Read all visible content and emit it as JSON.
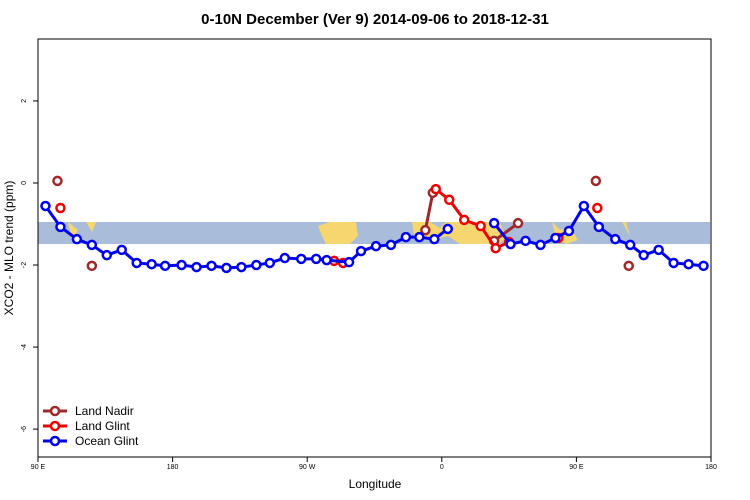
{
  "chart_data": {
    "type": "line",
    "title": "0-10N December (Ver 9)   2014-09-06 to 2018-12-31",
    "x_label": "Longitude",
    "y_label": "XCO2 - MLO trend (ppm)",
    "xlim": [
      90,
      540
    ],
    "ylim": [
      -6.68,
      3.51
    ],
    "xticks": [
      {
        "value": 90,
        "label": "90 E"
      },
      180,
      {
        "value": 270,
        "label": "90 W"
      },
      {
        "value": 360,
        "label": "0"
      },
      {
        "value": 450,
        "label": "90 E"
      },
      {
        "value": 540,
        "label": "180"
      }
    ],
    "yticks": [
      -6,
      -4,
      -2,
      0,
      2
    ],
    "legend": "bottom-left",
    "series": [
      {
        "name": "Land Nadir",
        "color": "#a0282a",
        "x": [
          103,
          null,
          126,
          null,
          349,
          354,
          null,
          395,
          411,
          null,
          463,
          null,
          485
        ],
        "values": [
          0.05,
          null,
          -2.02,
          null,
          -1.15,
          -0.24,
          null,
          -1.41,
          -0.98,
          null,
          0.05,
          null,
          -2.02
        ]
      },
      {
        "name": "Land Glint",
        "color": "#ee0000",
        "x": [
          105,
          null,
          288,
          294,
          null,
          356,
          365,
          375,
          386,
          396,
          405,
          null,
          438,
          null,
          464
        ],
        "values": [
          -0.61,
          null,
          -1.9,
          -1.95,
          null,
          -0.15,
          -0.41,
          -0.9,
          -1.05,
          -1.59,
          -1.44,
          null,
          -1.34,
          null,
          -0.61
        ]
      },
      {
        "name": "Ocean Glint",
        "color": "#0000ee",
        "x": [
          95,
          105,
          116,
          126,
          136,
          146,
          156,
          166,
          175,
          186,
          196,
          206,
          216,
          226,
          236,
          245,
          255,
          266,
          276,
          283,
          298,
          306,
          316,
          326,
          336,
          345,
          355,
          364,
          null,
          395,
          406,
          416,
          426,
          436,
          445,
          455,
          465,
          476,
          486,
          495,
          505,
          515,
          525,
          535
        ],
        "values": [
          -0.56,
          -1.07,
          -1.37,
          -1.51,
          -1.76,
          -1.63,
          -1.95,
          -1.98,
          -2.02,
          -2.0,
          -2.05,
          -2.02,
          -2.07,
          -2.05,
          -2.0,
          -1.95,
          -1.83,
          -1.85,
          -1.85,
          -1.88,
          -1.93,
          -1.66,
          -1.54,
          -1.51,
          -1.32,
          -1.32,
          -1.37,
          -1.12,
          null,
          -0.98,
          -1.49,
          -1.41,
          -1.51,
          -1.34,
          -1.17,
          -0.56,
          -1.07,
          -1.37,
          -1.51,
          -1.76,
          -1.63,
          -1.95,
          -1.98,
          -2.02
        ]
      }
    ]
  }
}
